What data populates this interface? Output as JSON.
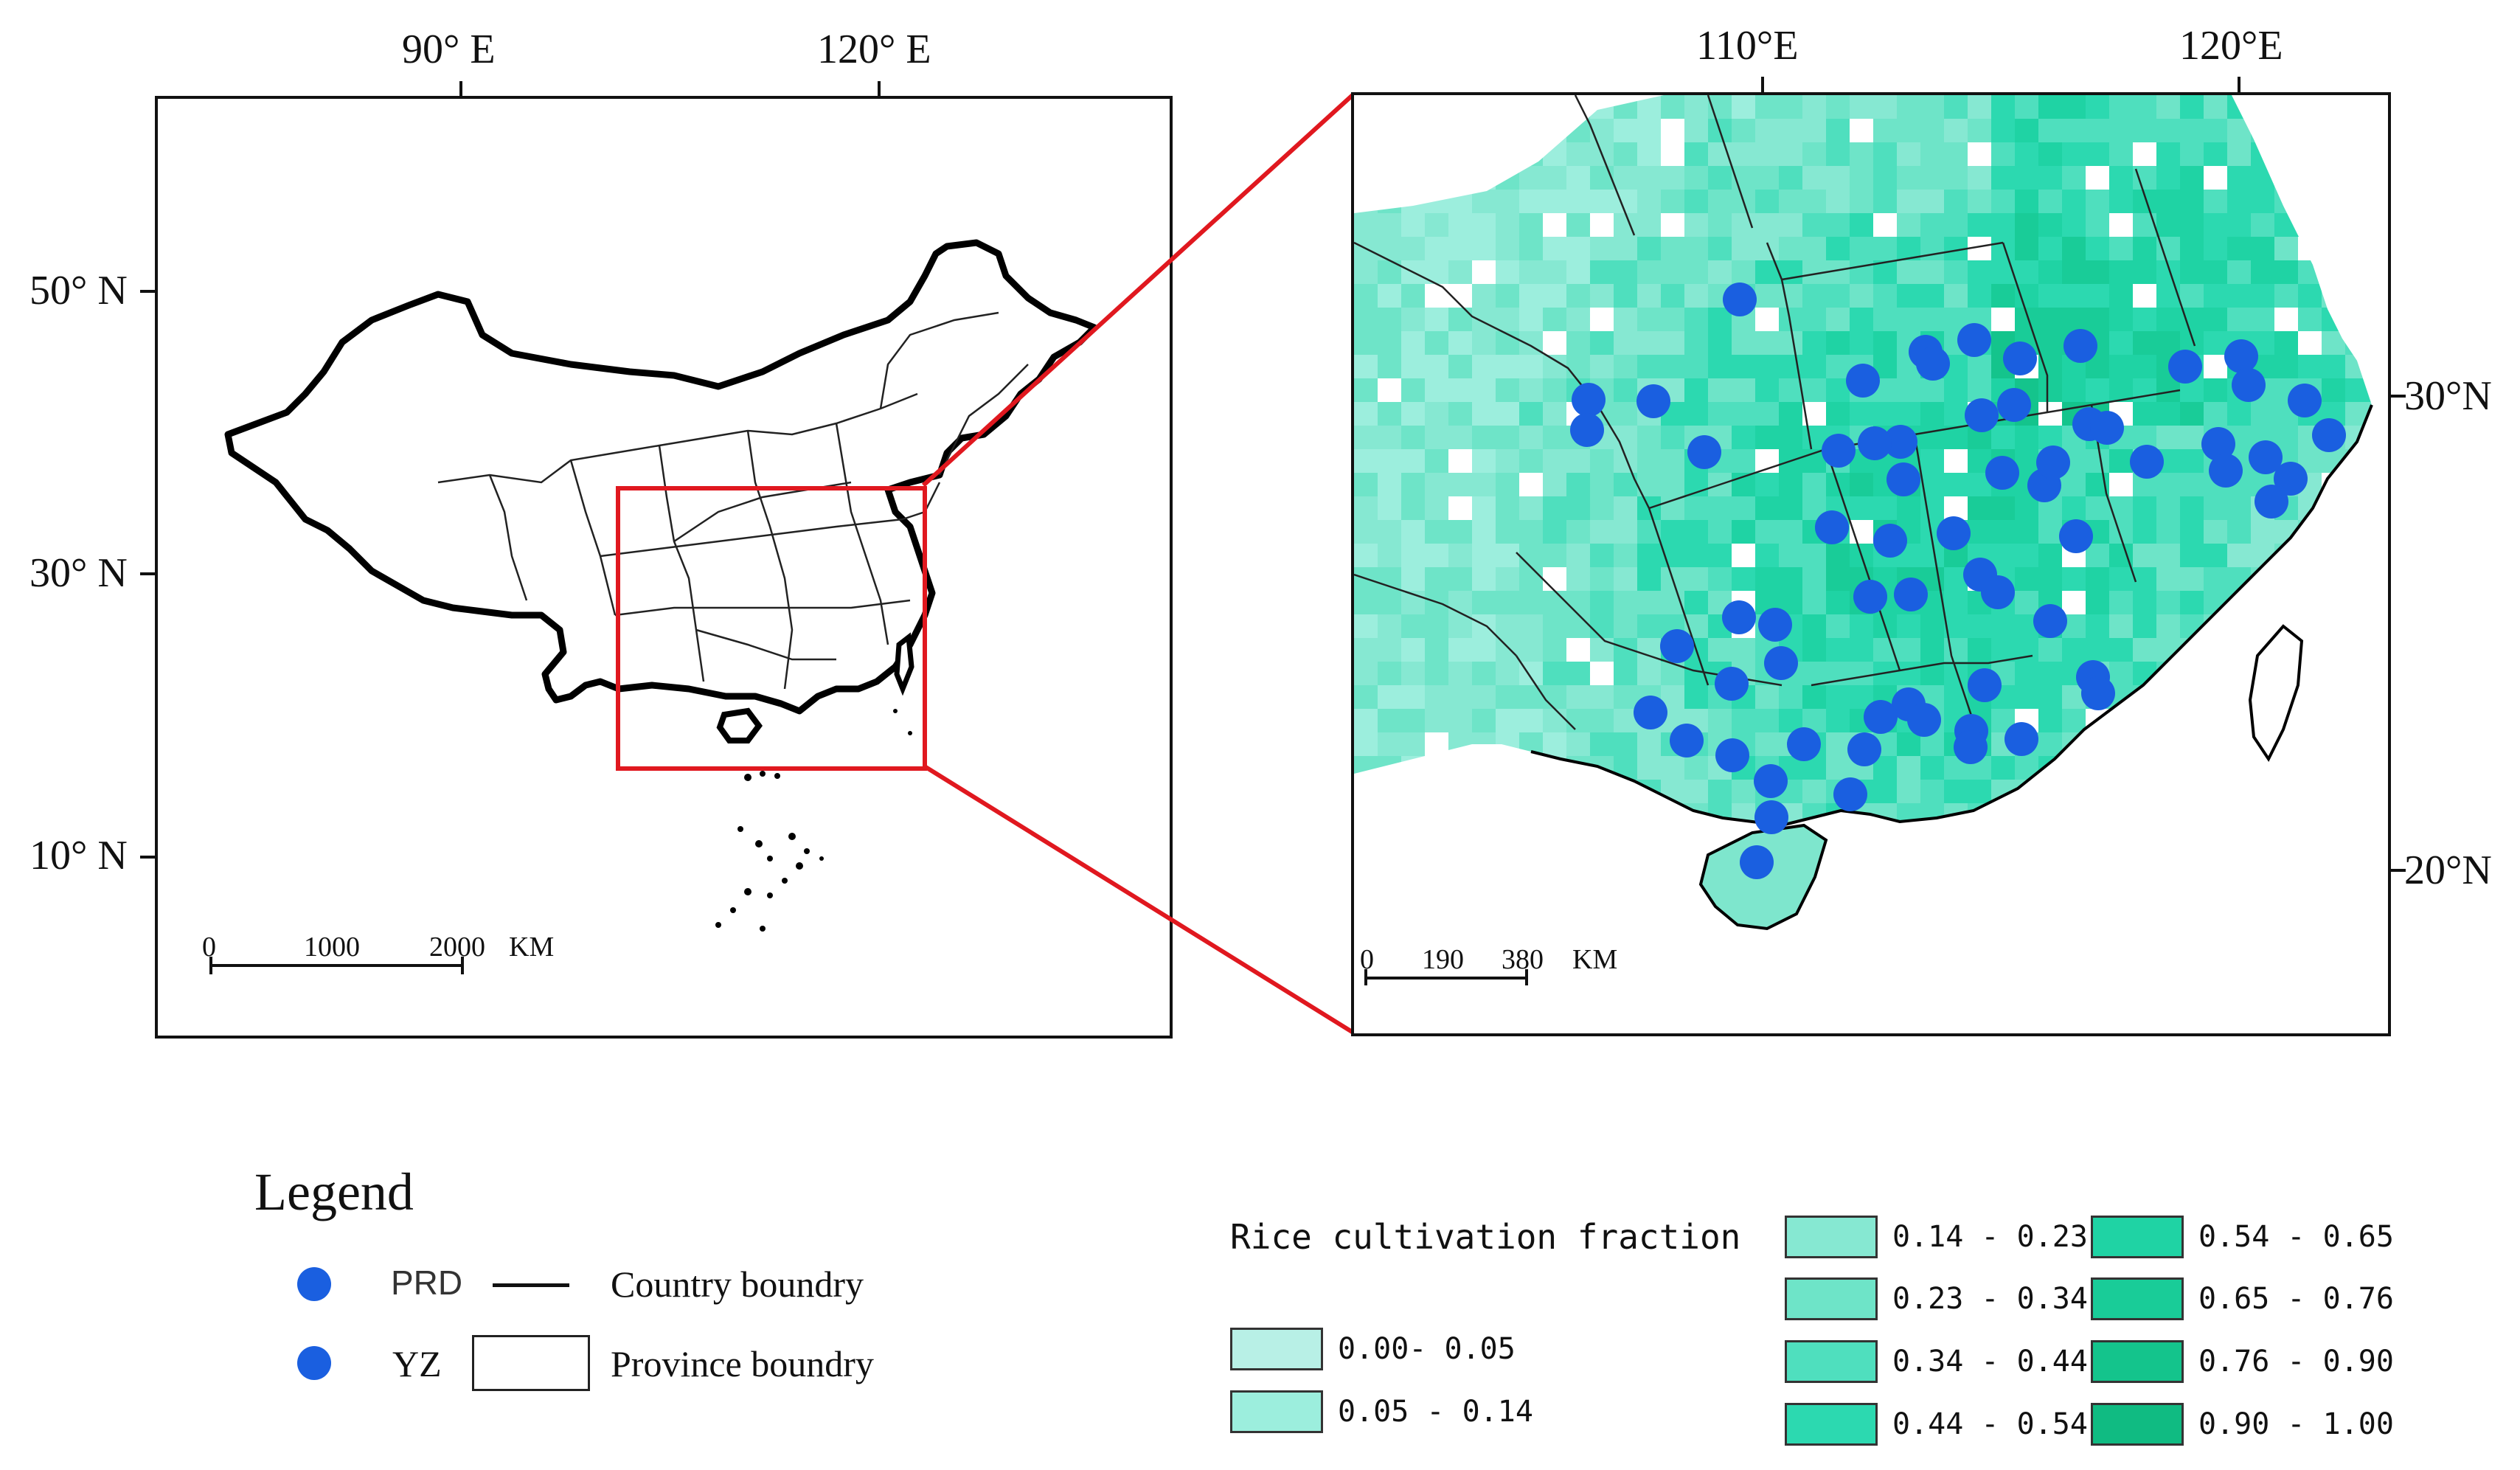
{
  "overview_map": {
    "lon_labels": [
      "90° E",
      "120° E"
    ],
    "lat_labels": [
      "50° N",
      "30° N",
      "10° N"
    ],
    "scalebar": {
      "labels": [
        "0",
        "1000",
        "2000",
        "KM"
      ]
    }
  },
  "detail_map": {
    "lon_labels": [
      "110°E",
      "120°E"
    ],
    "lat_labels": [
      "30°N",
      "20°N"
    ],
    "scalebar": {
      "labels": [
        "0",
        "190",
        "380",
        "KM"
      ]
    }
  },
  "legend": {
    "title": "Legend",
    "items": [
      {
        "label": "PRD",
        "symbol": "dot",
        "color": "#1a5fe0"
      },
      {
        "label": "YZ",
        "symbol": "dot",
        "color": "#1a5fe0"
      },
      {
        "label": "Country boundry",
        "symbol": "thick-line"
      },
      {
        "label": "Province boundry",
        "symbol": "box"
      }
    ]
  },
  "rice_legend": {
    "title": "Rice cultivation fraction",
    "classes": [
      {
        "label": "0.00- 0.05",
        "color": "#b8f0e6"
      },
      {
        "label": "0.05 - 0.14",
        "color": "#9ceedd"
      },
      {
        "label": "0.14 - 0.23",
        "color": "#86e8d2"
      },
      {
        "label": "0.23 - 0.34",
        "color": "#6ee4c8"
      },
      {
        "label": "0.34 - 0.44",
        "color": "#4fdfbe"
      },
      {
        "label": "0.44 - 0.54",
        "color": "#2cd9b0"
      },
      {
        "label": "0.54 - 0.65",
        "color": "#1fd3a4"
      },
      {
        "label": "0.65 - 0.76",
        "color": "#19cc98"
      },
      {
        "label": "0.76 - 0.90",
        "color": "#14c48c"
      },
      {
        "label": "0.90 - 1.00",
        "color": "#10bb82"
      }
    ]
  }
}
